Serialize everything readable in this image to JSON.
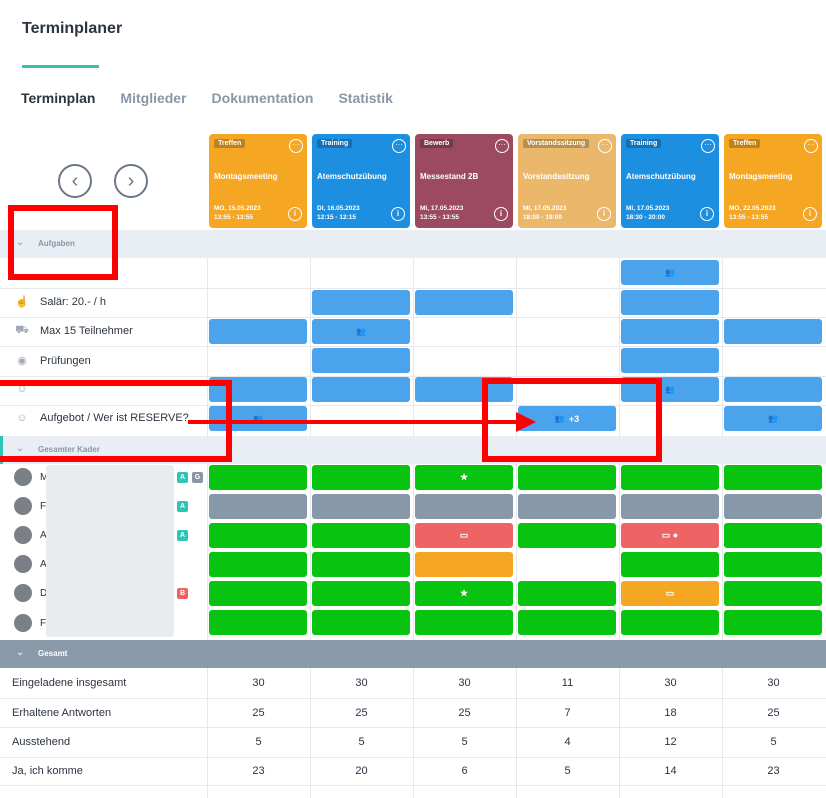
{
  "app": {
    "title": "Terminplaner"
  },
  "tabs": [
    {
      "label": "Terminplan",
      "active": true
    },
    {
      "label": "Mitglieder",
      "active": false
    },
    {
      "label": "Dokumentation",
      "active": false
    },
    {
      "label": "Statistik",
      "active": false
    }
  ],
  "events": [
    {
      "type": "Treffen",
      "name": "Montagsmeeting",
      "date": "MO, 15.05.2023",
      "time": "13:55 - 13:55",
      "color": "#f5a623"
    },
    {
      "type": "Training",
      "name": "Atemschutzübung",
      "date": "DI, 16.05.2023",
      "time": "12:15 - 12:15",
      "color": "#1d8fe1"
    },
    {
      "type": "Bewerb",
      "name": "Messestand 2B",
      "date": "MI, 17.05.2023",
      "time": "13:55 - 13:55",
      "color": "#9b4a62"
    },
    {
      "type": "Vorstandssitzung",
      "name": "Vorstandssitzung",
      "date": "MI, 17.05.2023",
      "time": "18:00 - 19:00",
      "color": "#ebb86b"
    },
    {
      "type": "Training",
      "name": "Atemschutzübung",
      "date": "MI, 17.05.2023",
      "time": "18:30 - 20:00",
      "color": "#1d8fe1"
    },
    {
      "type": "Treffen",
      "name": "Montagsmeeting",
      "date": "MO, 22.05.2023",
      "time": "13:55 - 13:55",
      "color": "#f5a623"
    }
  ],
  "sections": {
    "tasks": "Aufgaben",
    "members": "Gesamter Kader",
    "summary": "Gesamt"
  },
  "tasks": [
    {
      "label": "",
      "icon": "none"
    },
    {
      "label": "Salär: 20.- / h",
      "icon": "hand-money-icon"
    },
    {
      "label": "Max 15 Teilnehmer",
      "icon": "car-icon"
    },
    {
      "label": "Prüfungen",
      "icon": "eye-icon"
    },
    {
      "label": "",
      "icon": "group-icon"
    },
    {
      "label": "Aufgebot / Wer ist RESERVE?",
      "icon": "users-icon"
    }
  ],
  "task_extra": {
    "plus_count": "+3"
  },
  "members": [
    {
      "initial": "M",
      "badges": [
        "A",
        "G"
      ]
    },
    {
      "initial": "F",
      "badges": [
        "A"
      ]
    },
    {
      "initial": "A",
      "badges": [
        "A"
      ]
    },
    {
      "initial": "A",
      "badges": []
    },
    {
      "initial": "D",
      "badges": [
        "B"
      ]
    },
    {
      "initial": "F",
      "badges": []
    }
  ],
  "summary": [
    {
      "label": "Eingeladene insgesamt",
      "values": [
        "30",
        "30",
        "30",
        "11",
        "30",
        "30"
      ]
    },
    {
      "label": "Erhaltene Antworten",
      "values": [
        "25",
        "25",
        "25",
        "7",
        "18",
        "25"
      ]
    },
    {
      "label": "Ausstehend",
      "values": [
        "5",
        "5",
        "5",
        "4",
        "12",
        "5"
      ]
    },
    {
      "label": "Ja, ich komme",
      "values": [
        "23",
        "20",
        "6",
        "5",
        "14",
        "23"
      ]
    }
  ],
  "colors": {
    "accent": "#2ec4b6",
    "blue": "#4ba3ec",
    "green": "#08c30f",
    "gray": "#8798a8",
    "red": "#ee6464",
    "orange": "#f5a623",
    "annotation": "#ff0000"
  }
}
